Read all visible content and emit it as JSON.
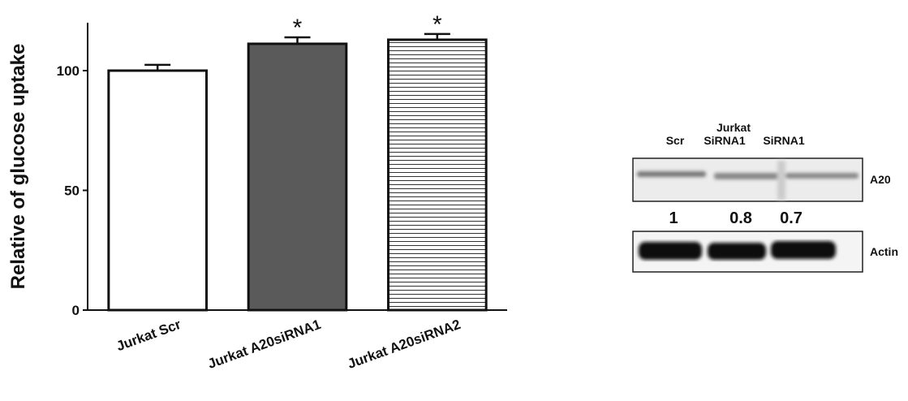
{
  "chart_data": {
    "type": "bar",
    "y_label": "Relative of glucose uptake",
    "categories": [
      "Jurkat Scr",
      "Jurkat A20siRNA1",
      "Jurkat A20siRNA2"
    ],
    "values": [
      100,
      111.2,
      112.9
    ],
    "errors": [
      2.4,
      2.7,
      2.4
    ],
    "colors": [
      "#ffffff",
      "#5a5a5a",
      "#ffffff"
    ],
    "hatched": [
      false,
      false,
      true
    ],
    "significance": [
      null,
      "*",
      "*"
    ],
    "ylim": [
      0,
      120
    ],
    "yticks": [
      0,
      50,
      100
    ],
    "grid": false
  },
  "blot": {
    "group": "Jurkat",
    "lanes": [
      "Scr",
      "SiRNA1",
      "SiRNA1"
    ],
    "proteins": [
      "A20",
      "Actin"
    ],
    "quantification": [
      1,
      0.8,
      0.7
    ]
  }
}
